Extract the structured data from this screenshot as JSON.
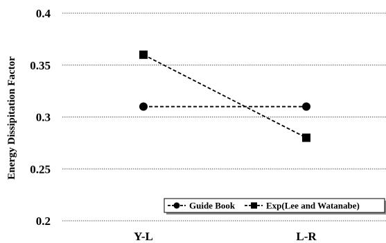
{
  "chart_data": {
    "type": "line",
    "categories": [
      "Y-L",
      "L-R"
    ],
    "series": [
      {
        "name": "Guide Book",
        "values": [
          0.31,
          0.31
        ],
        "marker": "circle",
        "dash": "dashed",
        "color": "#000000"
      },
      {
        "name": "Exp(Lee and Watanabe)",
        "values": [
          0.36,
          0.28
        ],
        "marker": "square",
        "dash": "dashed",
        "color": "#000000"
      }
    ],
    "ylabel": "Energy Dissipitation Factor",
    "xlabel": "",
    "ylim": [
      0.2,
      0.4
    ],
    "yticks": [
      "0.2",
      "0.25",
      "0.3",
      "0.35",
      "0.4"
    ],
    "grid": "horizontal-dotted",
    "legend_position": "bottom-right"
  }
}
